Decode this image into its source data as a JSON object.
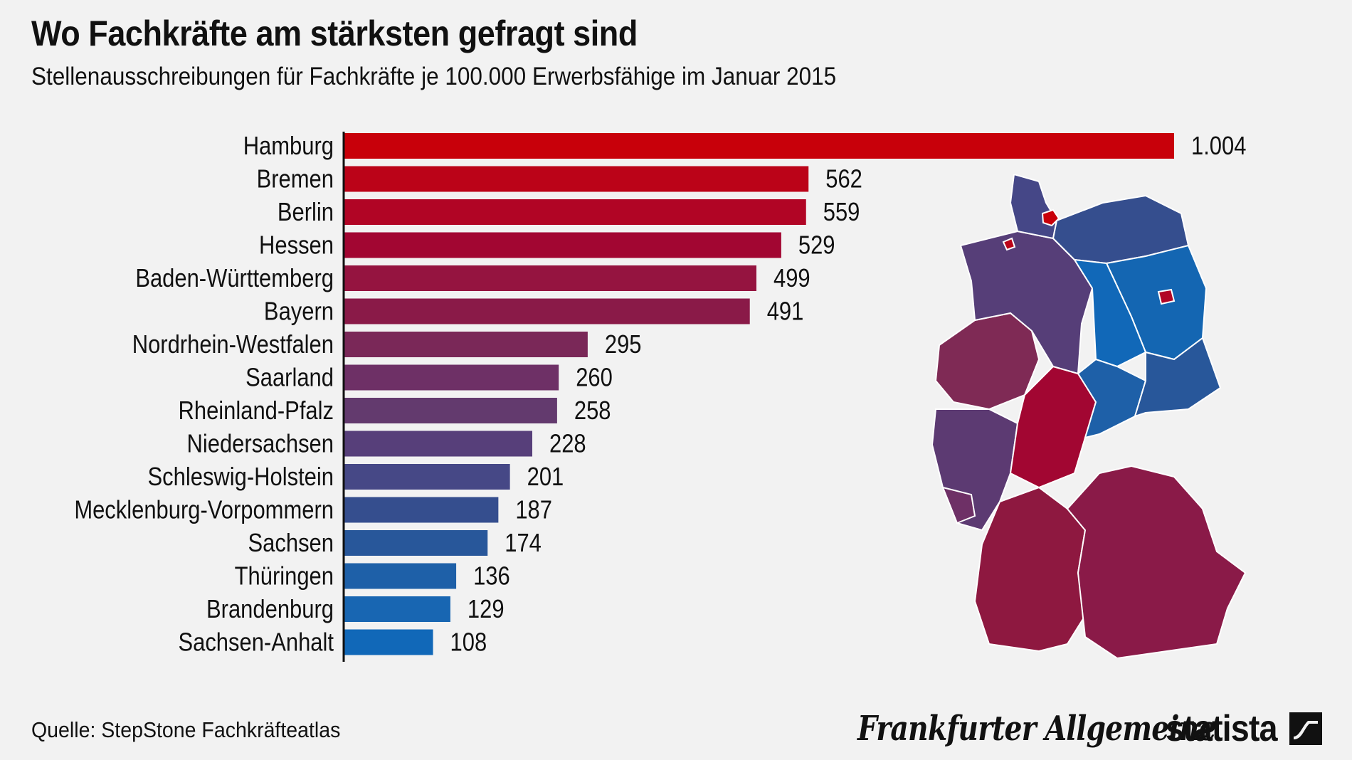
{
  "header": {
    "title": "Wo Fachkräfte am stärksten gefragt sind",
    "subtitle": "Stellenausschreibungen für Fachkräfte je 100.000 Erwerbsfähige im Januar 2015"
  },
  "chart_data": {
    "type": "bar",
    "orientation": "horizontal",
    "title": "Wo Fachkräfte am stärksten gefragt sind",
    "subtitle": "Stellenausschreibungen für Fachkräfte je 100.000 Erwerbsfähige im Januar 2015",
    "categories": [
      "Hamburg",
      "Bremen",
      "Berlin",
      "Hessen",
      "Baden-Württemberg",
      "Bayern",
      "Nordrhein-Westfalen",
      "Saarland",
      "Rheinland-Pfalz",
      "Niedersachsen",
      "Schleswig-Holstein",
      "Mecklenburg-Vorpommern",
      "Sachsen",
      "Thüringen",
      "Brandenburg",
      "Sachsen-Anhalt"
    ],
    "values": [
      1004,
      562,
      559,
      529,
      499,
      491,
      295,
      260,
      258,
      228,
      201,
      187,
      174,
      136,
      129,
      108
    ],
    "value_labels": [
      "1.004",
      "562",
      "559",
      "529",
      "499",
      "491",
      "295",
      "260",
      "258",
      "228",
      "201",
      "187",
      "174",
      "136",
      "129",
      "108"
    ],
    "colors": [
      "#c8000a",
      "#bb0318",
      "#b10525",
      "#a20632",
      "#951440",
      "#8a1a48",
      "#7a2858",
      "#6e3066",
      "#633a6e",
      "#573f7a",
      "#464886",
      "#354e8e",
      "#28579a",
      "#1e60a8",
      "#1866b2",
      "#1168b8"
    ],
    "xlim": [
      0,
      1004
    ],
    "grid": false,
    "legend": "none"
  },
  "map": {
    "colors": {
      "west": "#7f2a55",
      "south_west": "#8e1840",
      "bayern": "#8a1a48",
      "hessen": "#a20632",
      "niedersachsen": "#563e78",
      "schleswig_holstein": "#454787",
      "mecklenburg": "#354e8e",
      "east_blue": "#1466b2",
      "hamburg": "#c8000a",
      "borders": "#ffffff"
    }
  },
  "footer": {
    "source": "Quelle: StepStone Fachkräfteatlas",
    "faz_logo": "Frankfurter Allgemeine",
    "statista_logo": "statista"
  }
}
